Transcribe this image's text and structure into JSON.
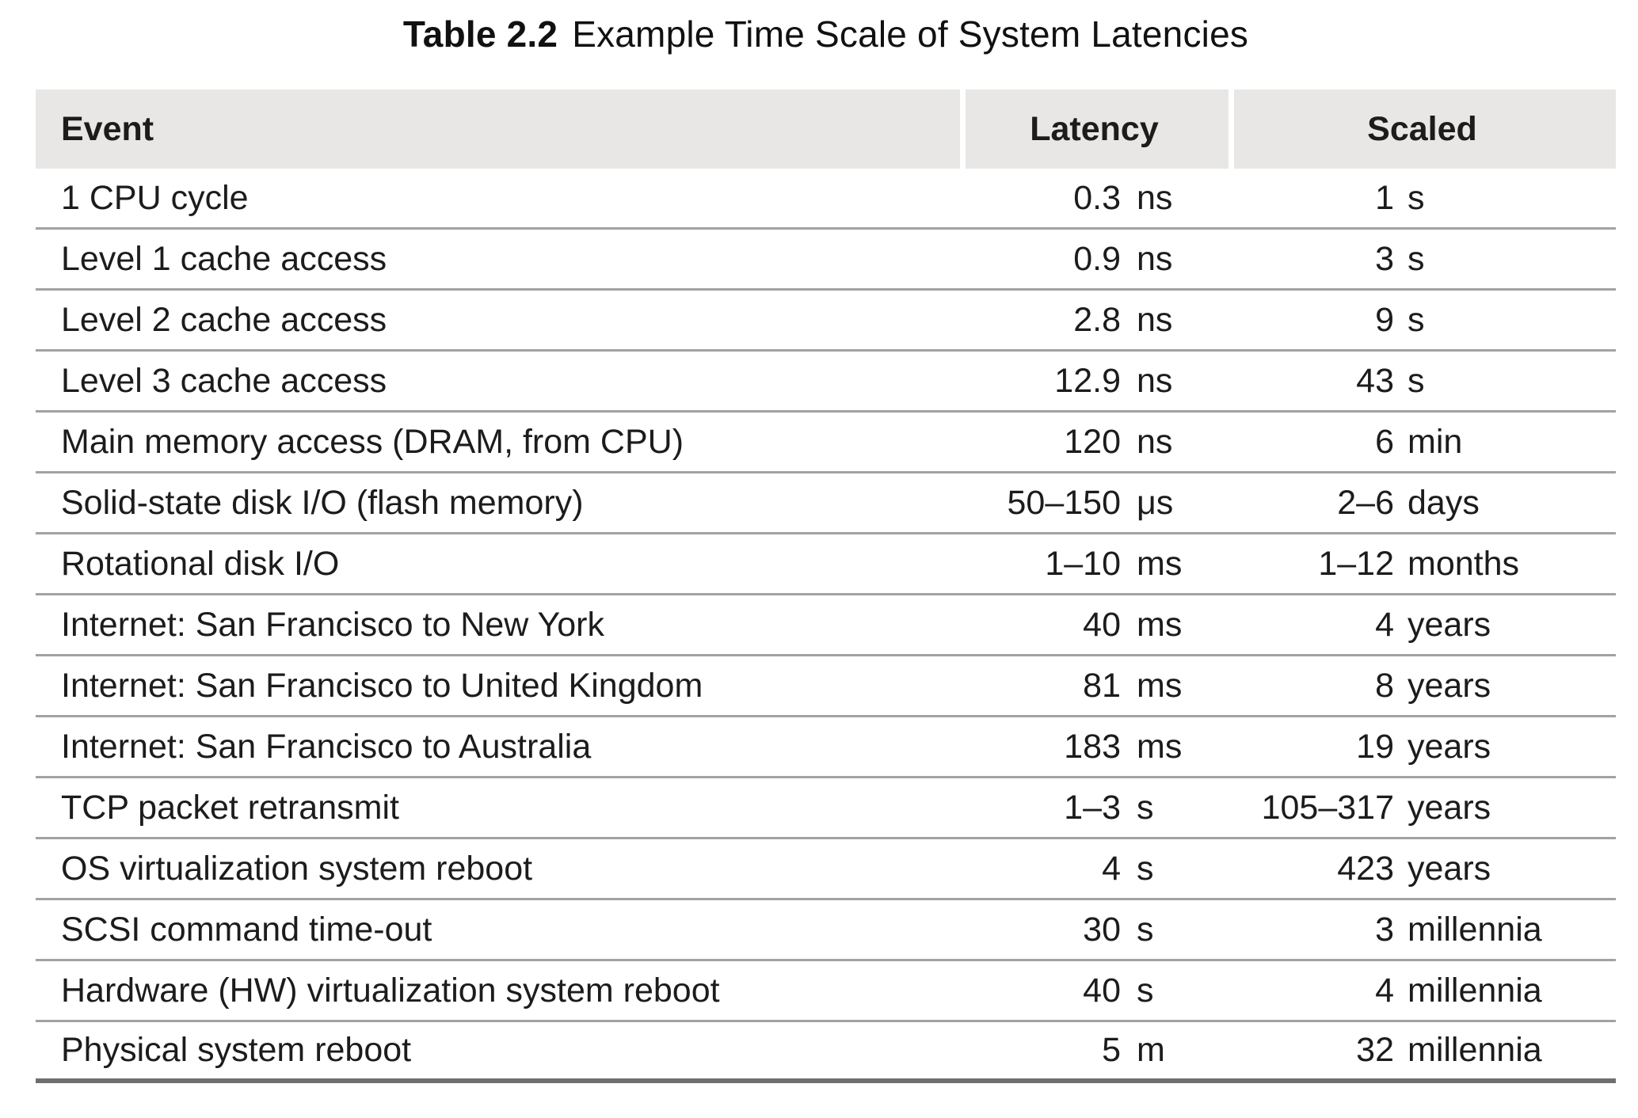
{
  "title": {
    "label": "Table 2.2",
    "text": "Example Time Scale of System Latencies"
  },
  "colors": {
    "header_background": "#e8e7e5",
    "row_divider": "#a2a2a2",
    "bottom_rule": "#6f6f6f",
    "text": "#1c1c1c"
  },
  "table": {
    "headers": {
      "event": "Event",
      "latency": "Latency",
      "scaled": "Scaled"
    },
    "rows": [
      {
        "event": "1 CPU cycle",
        "latency": "0.3",
        "latency_unit": "ns",
        "scaled": "1",
        "scaled_unit": "s"
      },
      {
        "event": "Level 1 cache access",
        "latency": "0.9",
        "latency_unit": "ns",
        "scaled": "3",
        "scaled_unit": "s"
      },
      {
        "event": "Level 2 cache access",
        "latency": "2.8",
        "latency_unit": "ns",
        "scaled": "9",
        "scaled_unit": "s"
      },
      {
        "event": "Level 3 cache access",
        "latency": "12.9",
        "latency_unit": "ns",
        "scaled": "43",
        "scaled_unit": "s"
      },
      {
        "event": "Main memory access (DRAM, from CPU)",
        "latency": "120",
        "latency_unit": "ns",
        "scaled": "6",
        "scaled_unit": "min"
      },
      {
        "event": "Solid-state disk I/O (flash memory)",
        "latency": "50–150",
        "latency_unit": "μs",
        "scaled": "2–6",
        "scaled_unit": "days"
      },
      {
        "event": "Rotational disk I/O",
        "latency": "1–10",
        "latency_unit": "ms",
        "scaled": "1–12",
        "scaled_unit": "months"
      },
      {
        "event": "Internet: San Francisco to New York",
        "latency": "40",
        "latency_unit": "ms",
        "scaled": "4",
        "scaled_unit": "years"
      },
      {
        "event": "Internet: San Francisco to United Kingdom",
        "latency": "81",
        "latency_unit": "ms",
        "scaled": "8",
        "scaled_unit": "years"
      },
      {
        "event": "Internet: San Francisco to Australia",
        "latency": "183",
        "latency_unit": "ms",
        "scaled": "19",
        "scaled_unit": "years"
      },
      {
        "event": "TCP packet retransmit",
        "latency": "1–3",
        "latency_unit": "s",
        "scaled": "105–317",
        "scaled_unit": "years"
      },
      {
        "event": "OS virtualization system reboot",
        "latency": "4",
        "latency_unit": "s",
        "scaled": "423",
        "scaled_unit": "years"
      },
      {
        "event": "SCSI command time-out",
        "latency": "30",
        "latency_unit": "s",
        "scaled": "3",
        "scaled_unit": "millennia"
      },
      {
        "event": "Hardware (HW) virtualization system reboot",
        "latency": "40",
        "latency_unit": "s",
        "scaled": "4",
        "scaled_unit": "millennia"
      },
      {
        "event": "Physical system reboot",
        "latency": "5",
        "latency_unit": "m",
        "scaled": "32",
        "scaled_unit": "millennia"
      }
    ]
  }
}
